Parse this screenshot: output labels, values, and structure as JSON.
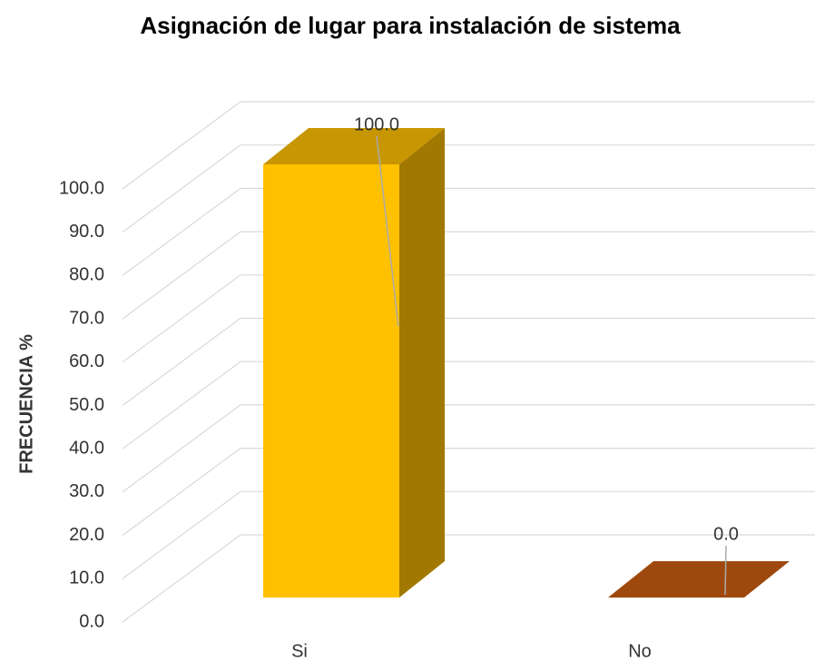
{
  "chart_data": {
    "type": "bar3d",
    "title": "Asignación de lugar para instalación de sistema",
    "y_label": "FRECUENCIA %",
    "categories": [
      "Si",
      "No"
    ],
    "values": [
      100,
      0
    ],
    "value_labels": [
      "100.0",
      "0.0"
    ],
    "colors": [
      "#ffc000",
      "#9e480e"
    ],
    "ylim": [
      0,
      100
    ],
    "yticks": [
      {
        "value": 0,
        "label": "0.0"
      },
      {
        "value": 10,
        "label": "10.0"
      },
      {
        "value": 20,
        "label": "20.0"
      },
      {
        "value": 30,
        "label": "30.0"
      },
      {
        "value": 40,
        "label": "40.0"
      },
      {
        "value": 50,
        "label": "50.0"
      },
      {
        "value": 60,
        "label": "60.0"
      },
      {
        "value": 70,
        "label": "70.0"
      },
      {
        "value": 80,
        "label": "80.0"
      },
      {
        "value": 90,
        "label": "90.0"
      },
      {
        "value": 100,
        "label": "100.0"
      }
    ],
    "grid": true
  }
}
